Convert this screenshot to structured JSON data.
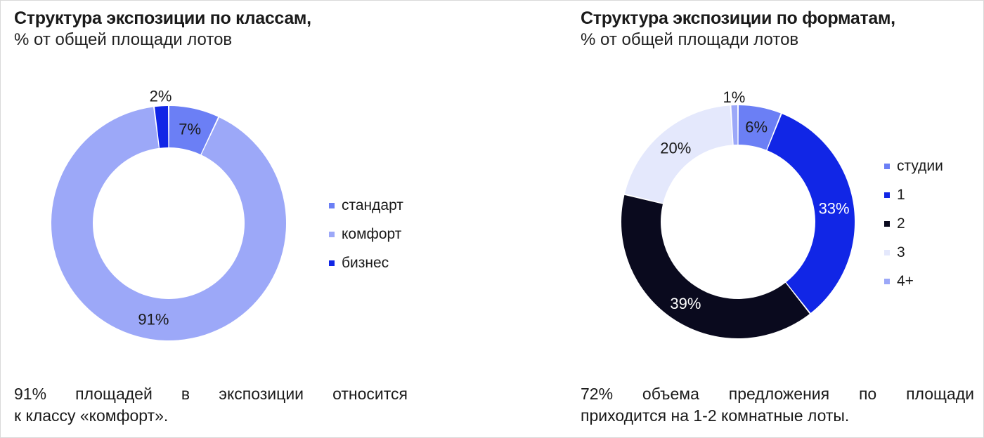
{
  "charts": [
    {
      "title": "Структура экспозиции по классам,",
      "subtitle": "% от общей площади лотов",
      "note_lines": [
        "91% площадей в экспозиции относится",
        "к классу «комфорт»."
      ]
    },
    {
      "title": "Структура экспозиции по форматам,",
      "subtitle": "% от общей площади лотов",
      "note_lines": [
        "72% объема предложения по площади",
        "приходится на 1-2 комнатные лоты."
      ]
    }
  ],
  "chart_data": [
    {
      "type": "pie",
      "title": "Структура экспозиции по классам,",
      "subtitle": "% от общей площади лотов",
      "categories": [
        "стандарт",
        "комфорт",
        "бизнес"
      ],
      "values": [
        7,
        91,
        2
      ],
      "labels": [
        "7%",
        "91%",
        "2%"
      ],
      "colors": [
        "#6b7ff5",
        "#9ca8f8",
        "#1126e6"
      ],
      "label_colors": [
        "#1a1a1a",
        "#1a1a1a",
        "#1a1a1a"
      ],
      "legend": "right"
    },
    {
      "type": "pie",
      "title": "Структура экспозиции по форматам,",
      "subtitle": "% от общей площади лотов",
      "categories": [
        "студии",
        "1",
        "2",
        "3",
        "4+"
      ],
      "values": [
        6,
        33,
        39,
        20,
        1
      ],
      "labels": [
        "6%",
        "33%",
        "39%",
        "20%",
        "1%"
      ],
      "colors": [
        "#6b7ff5",
        "#1126e6",
        "#0a0a1e",
        "#e4e8fc",
        "#9ca8f8"
      ],
      "label_colors": [
        "#1a1a1a",
        "#ffffff",
        "#ffffff",
        "#1a1a1a",
        "#1a1a1a"
      ],
      "legend": "right"
    }
  ]
}
